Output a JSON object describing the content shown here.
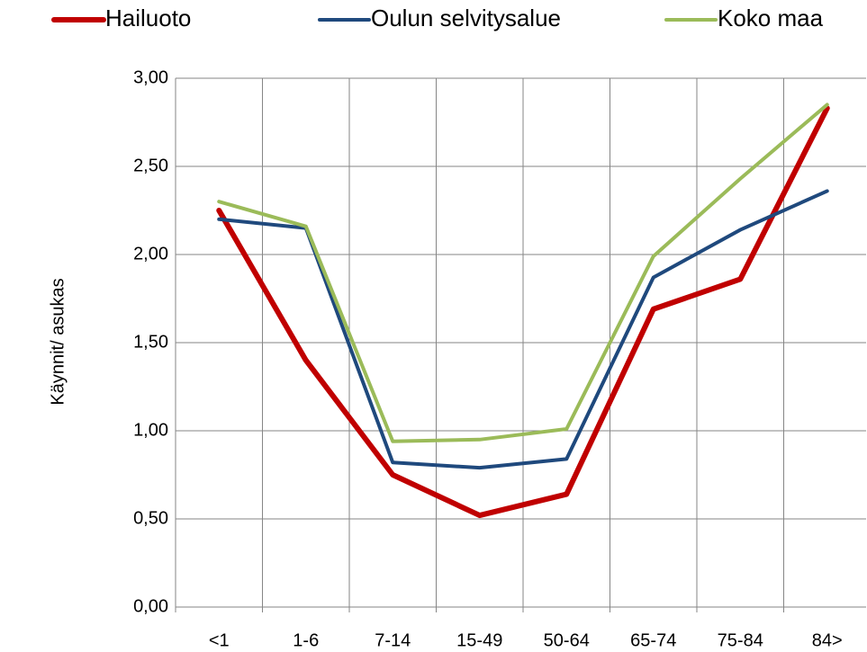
{
  "chart_data": {
    "type": "line",
    "y_label": "Käynnit/ asukas",
    "categories": [
      "<1",
      "1-6",
      "7-14",
      "15-49",
      "50-64",
      "65-74",
      "75-84",
      "84>"
    ],
    "series": [
      {
        "name": "Hailuoto",
        "color": "#c00000",
        "values": [
          2.25,
          1.4,
          0.75,
          0.52,
          0.64,
          1.69,
          1.86,
          2.83
        ]
      },
      {
        "name": "Oulun selvitysalue",
        "color": "#1f497d",
        "values": [
          2.2,
          2.15,
          0.82,
          0.79,
          0.84,
          1.87,
          2.14,
          2.36
        ]
      },
      {
        "name": "Koko maa",
        "color": "#9bbb59",
        "values": [
          2.3,
          2.16,
          0.94,
          0.95,
          1.01,
          1.99,
          2.43,
          2.85
        ]
      }
    ],
    "ylim": [
      0,
      3
    ],
    "yticks": [
      {
        "value": 0,
        "label": "0,00"
      },
      {
        "value": 0.5,
        "label": "0,50"
      },
      {
        "value": 1,
        "label": "1,00"
      },
      {
        "value": 1.5,
        "label": "1,50"
      },
      {
        "value": 2,
        "label": "2,00"
      },
      {
        "value": 2.5,
        "label": "2,50"
      },
      {
        "value": 3,
        "label": "3,00"
      }
    ],
    "grid": true,
    "legend": "top"
  }
}
